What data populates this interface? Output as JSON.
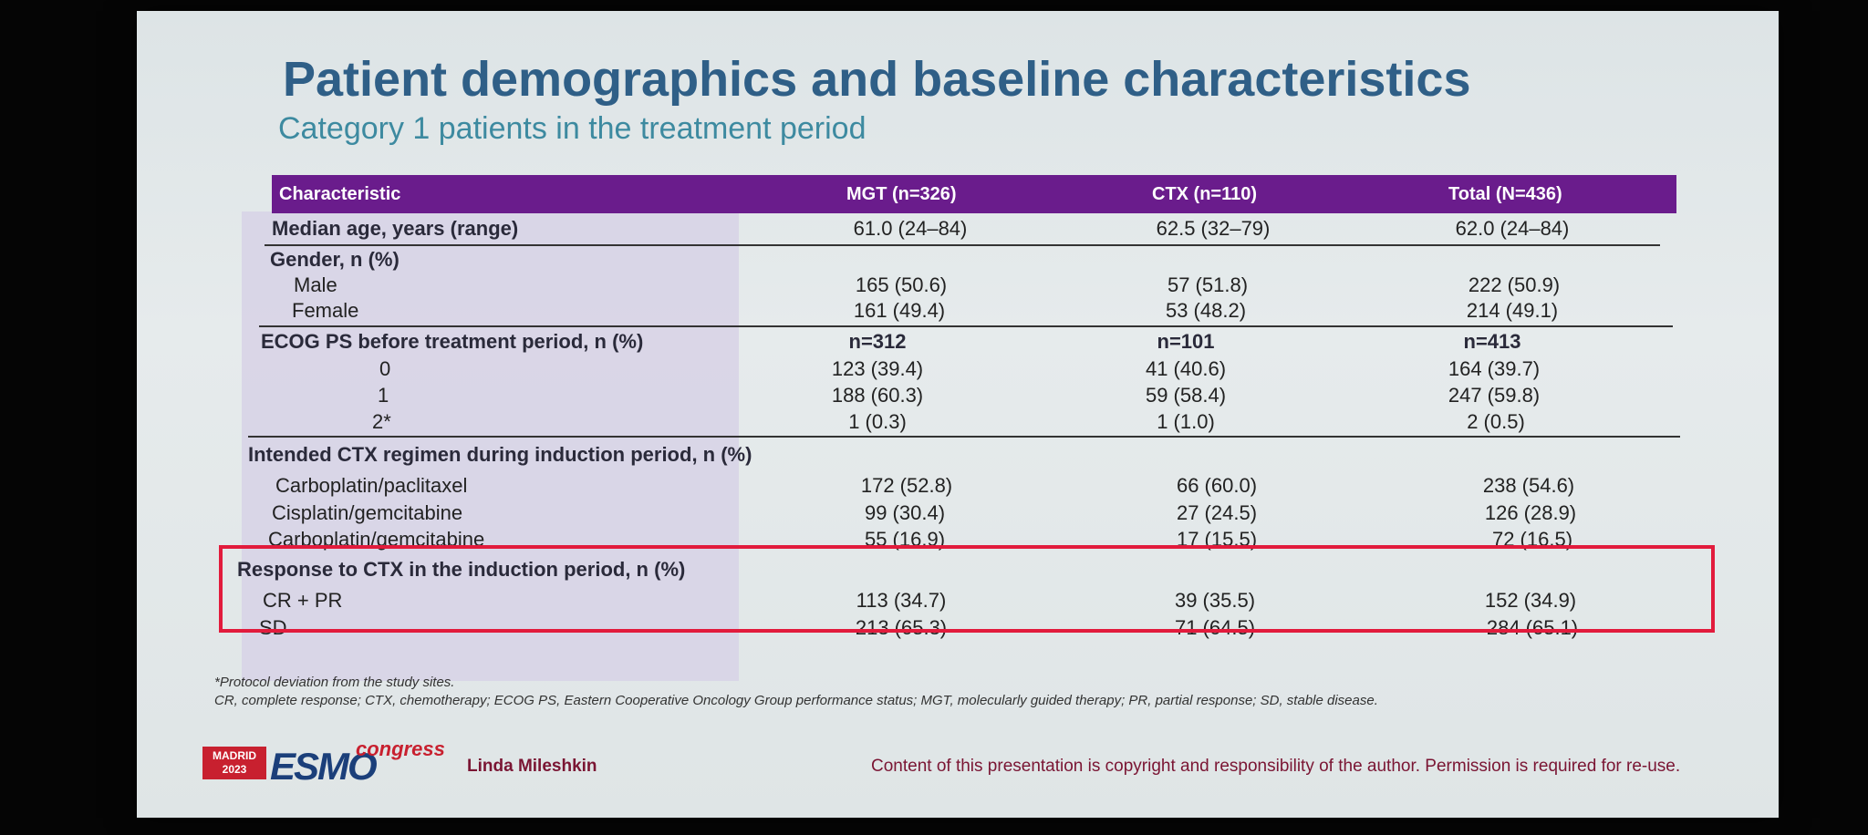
{
  "title": "Patient demographics and baseline characteristics",
  "subtitle": "Category 1 patients in the treatment period",
  "table": {
    "headers": [
      "Characteristic",
      "MGT (n=326)",
      "CTX (n=110)",
      "Total (N=436)"
    ],
    "rows": [
      {
        "label": "Median age, years (range)",
        "mgt": "61.0 (24–84)",
        "ctx": "62.5 (32–79)",
        "total": "62.0 (24–84)"
      },
      {
        "label": "Gender, n (%)"
      },
      {
        "label": "Male",
        "mgt": "165 (50.6)",
        "ctx": "57 (51.8)",
        "total": "222 (50.9)"
      },
      {
        "label": "Female",
        "mgt": "161 (49.4)",
        "ctx": "53 (48.2)",
        "total": "214 (49.1)"
      },
      {
        "label": "ECOG PS before treatment period, n (%)",
        "mgt": "n=312",
        "ctx": "n=101",
        "total": "n=413"
      },
      {
        "label": "0",
        "mgt": "123 (39.4)",
        "ctx": "41 (40.6)",
        "total": "164 (39.7)"
      },
      {
        "label": "1",
        "mgt": "188 (60.3)",
        "ctx": "59 (58.4)",
        "total": "247 (59.8)"
      },
      {
        "label": "2*",
        "mgt": "1 (0.3)",
        "ctx": "1 (1.0)",
        "total": "2 (0.5)"
      },
      {
        "label": "Intended CTX regimen during induction period, n (%)"
      },
      {
        "label": "Carboplatin/paclitaxel",
        "mgt": "172 (52.8)",
        "ctx": "66 (60.0)",
        "total": "238 (54.6)"
      },
      {
        "label": "Cisplatin/gemcitabine",
        "mgt": "99 (30.4)",
        "ctx": "27 (24.5)",
        "total": "126 (28.9)"
      },
      {
        "label": "Carboplatin/gemcitabine",
        "mgt": "55 (16.9)",
        "ctx": "17 (15.5)",
        "total": "72 (16.5)"
      },
      {
        "label": "Response to CTX in the induction period, n (%)"
      },
      {
        "label": "CR + PR",
        "mgt": "113 (34.7)",
        "ctx": "39 (35.5)",
        "total": "152 (34.9)"
      },
      {
        "label": "SD",
        "mgt": "213 (65.3)",
        "ctx": "71 (64.5)",
        "total": "284 (65.1)"
      }
    ]
  },
  "footnotes": {
    "line1": "*Protocol deviation from the study sites.",
    "line2": "CR, complete response; CTX, chemotherapy; ECOG PS, Eastern Cooperative Oncology Group performance status; MGT, molecularly guided therapy; PR, partial response; SD, stable disease."
  },
  "footer": {
    "city": "MADRID",
    "year": "2023",
    "logo_text": "ESMO",
    "logo_sub": "congress",
    "author": "Linda Mileshkin",
    "copyright": "Content of this presentation is copyright and responsibility of the author. Permission is required for re-use."
  },
  "colors": {
    "header_bg": "#6a1c8c",
    "title": "#2f5f87",
    "subtitle": "#3d8aa0",
    "highlight_border": "#e21b3c"
  }
}
